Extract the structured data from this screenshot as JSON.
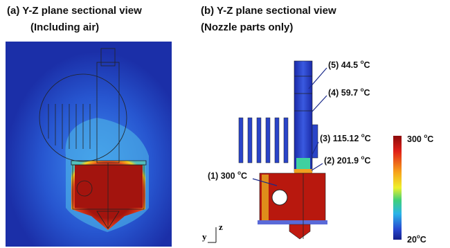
{
  "panel_a": {
    "title": "(a) Y-Z plane sectional view",
    "subtitle": "(Including air)"
  },
  "panel_b": {
    "title": "(b) Y-Z plane sectional view",
    "subtitle": "(Nozzle parts only)",
    "labels": [
      {
        "text": "(5) 44.5 ",
        "sup": "o",
        "unit": "C"
      },
      {
        "text": "(4) 59.7 ",
        "sup": "o",
        "unit": "C"
      },
      {
        "text": "(3) 115.12 ",
        "sup": "o",
        "unit": "C"
      },
      {
        "text": "(2) 201.9 ",
        "sup": "o",
        "unit": "C"
      },
      {
        "text": "(1) 300 ",
        "sup": "o",
        "unit": "C"
      }
    ],
    "axes": {
      "vertical": "z",
      "horizontal": "y"
    }
  },
  "colorbar": {
    "max": {
      "text": "300 ",
      "sup": "o",
      "unit": "C"
    },
    "min": {
      "text": "20",
      "sup": "o",
      "unit": "C"
    }
  }
}
